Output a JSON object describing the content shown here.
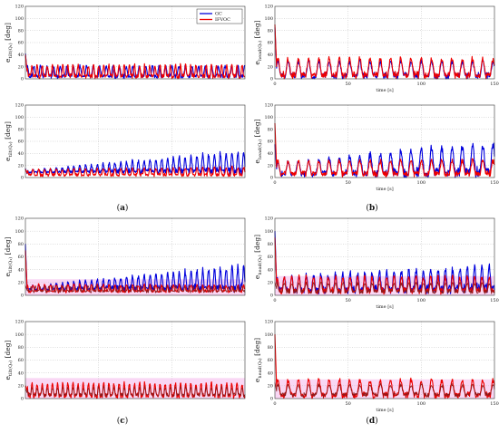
{
  "figure": {
    "colors": {
      "gc": "#0000dd",
      "ifvoc": "#ee0000",
      "band": "#f7c6ef",
      "dark": "#8b1a1a",
      "grid": "#bdbdbd"
    },
    "panel_captions": [
      {
        "open": "(",
        "letter": "a",
        "close": ")"
      },
      {
        "open": "(",
        "letter": "b",
        "close": ")"
      },
      {
        "open": "(",
        "letter": "c",
        "close": ")"
      },
      {
        "open": "(",
        "letter": "d",
        "close": ")"
      }
    ]
  },
  "chart_data": [
    {
      "type": "line",
      "panel": "a",
      "position": "top",
      "ylabel": {
        "main": "e",
        "sub": "tilt",
        "arg": "(Q₁)",
        "unit": "[deg]"
      },
      "xlabel": "",
      "xlim": [
        0,
        150
      ],
      "ylim": [
        0,
        120
      ],
      "xticks": [
        0,
        50,
        100,
        150
      ],
      "yticks": [
        0,
        20,
        40,
        60,
        80,
        100,
        120
      ],
      "legend": {
        "position": "top-right",
        "entries": [
          "GC",
          "IFVOC"
        ]
      },
      "series": [
        {
          "name": "GC",
          "color": "#0000dd",
          "start": 42,
          "low": 2,
          "high_start": 22,
          "high_end": 22,
          "period": 4.5,
          "seed": 1
        },
        {
          "name": "IFVOC",
          "color": "#ee0000",
          "start": 40,
          "low": 2,
          "high_start": 24,
          "high_end": 24,
          "period": 3.5,
          "seed": 2
        }
      ]
    },
    {
      "type": "line",
      "panel": "a",
      "position": "bottom",
      "ylabel": {
        "main": "e",
        "sub": "head",
        "arg": "(Q₁)",
        "unit": "[deg]"
      },
      "xlabel": "time [s]",
      "xlim": [
        0,
        150
      ],
      "ylim": [
        0,
        120
      ],
      "xticks": [
        0,
        50,
        100,
        150
      ],
      "yticks": [
        0,
        20,
        40,
        60,
        80,
        100,
        120
      ],
      "series": [
        {
          "name": "GC",
          "color": "#0000dd",
          "start": 85,
          "low": 2,
          "high_start": 30,
          "high_end": 30,
          "period": 7,
          "seed": 3
        },
        {
          "name": "IFVOC",
          "color": "#ee0000",
          "start": 90,
          "low": 2,
          "high_start": 35,
          "high_end": 35,
          "period": 7,
          "seed": 4
        }
      ]
    },
    {
      "type": "line",
      "panel": "b",
      "position": "top",
      "ylabel": {
        "main": "e",
        "sub": "tilt",
        "arg": "(Q₂)",
        "unit": "[deg]"
      },
      "xlabel": "",
      "xlim": [
        0,
        150
      ],
      "ylim": [
        0,
        120
      ],
      "xticks": [
        0,
        50,
        100,
        150
      ],
      "yticks": [
        0,
        20,
        40,
        60,
        80,
        100,
        120
      ],
      "series": [
        {
          "name": "GC",
          "color": "#0000dd",
          "start": 15,
          "low": 8,
          "high_start": 12,
          "high_end": 45,
          "period": 4,
          "seed": 5
        },
        {
          "name": "IFVOC",
          "color": "#ee0000",
          "start": 14,
          "low": 3,
          "high_start": 14,
          "high_end": 18,
          "period": 4,
          "seed": 6
        }
      ]
    },
    {
      "type": "line",
      "panel": "b",
      "position": "bottom",
      "ylabel": {
        "main": "e",
        "sub": "head",
        "arg": "(Q₂)",
        "unit": "[deg]"
      },
      "xlabel": "time [s]",
      "xlim": [
        0,
        150
      ],
      "ylim": [
        0,
        120
      ],
      "xticks": [
        0,
        50,
        100,
        150
      ],
      "yticks": [
        0,
        20,
        40,
        60,
        80,
        100,
        120
      ],
      "series": [
        {
          "name": "GC",
          "color": "#0000dd",
          "start": 55,
          "low": 3,
          "high_start": 25,
          "high_end": 60,
          "period": 7,
          "seed": 7
        },
        {
          "name": "IFVOC",
          "color": "#ee0000",
          "start": 90,
          "low": 3,
          "high_start": 28,
          "high_end": 30,
          "period": 7,
          "seed": 8
        }
      ]
    },
    {
      "type": "line",
      "panel": "c",
      "position": "top",
      "ylabel": {
        "main": "e",
        "sub": "tilt",
        "arg": "(Q₁)",
        "unit": "[deg]"
      },
      "xlabel": "",
      "xlim": [
        0,
        150
      ],
      "ylim": [
        0,
        120
      ],
      "xticks": [
        0,
        50,
        100,
        150
      ],
      "yticks": [
        0,
        20,
        40,
        60,
        80,
        100,
        120
      ],
      "band": [
        0,
        25
      ],
      "series": [
        {
          "name": "GC",
          "color": "#0000dd",
          "start": 80,
          "low": 8,
          "high_start": 15,
          "high_end": 48,
          "period": 4,
          "seed": 9
        },
        {
          "name": "IFVOC",
          "color": "#ee0000",
          "start": 70,
          "low": 5,
          "high_start": 18,
          "high_end": 16,
          "period": 4,
          "seed": 10
        },
        {
          "name": "",
          "color": "#8b1a1a",
          "start": 15,
          "low": 5,
          "high_start": 15,
          "high_end": 15,
          "period": 3,
          "seed": 11
        }
      ]
    },
    {
      "type": "line",
      "panel": "c",
      "position": "bottom",
      "ylabel": {
        "main": "e",
        "sub": "head",
        "arg": "(Q₁)",
        "unit": "[deg]"
      },
      "xlabel": "time [s]",
      "xlim": [
        0,
        150
      ],
      "ylim": [
        0,
        120
      ],
      "xticks": [
        0,
        50,
        100,
        150
      ],
      "yticks": [
        0,
        20,
        40,
        60,
        80,
        100,
        120
      ],
      "band": [
        0,
        30
      ],
      "series": [
        {
          "name": "GC",
          "color": "#0000dd",
          "start": 100,
          "low": 5,
          "high_start": 30,
          "high_end": 48,
          "period": 5,
          "seed": 12
        },
        {
          "name": "IFVOC",
          "color": "#ee0000",
          "start": 90,
          "low": 4,
          "high_start": 30,
          "high_end": 30,
          "period": 5,
          "seed": 13
        },
        {
          "name": "",
          "color": "#8b1a1a",
          "start": 20,
          "low": 4,
          "high_start": 20,
          "high_end": 20,
          "period": 5,
          "seed": 14
        }
      ]
    },
    {
      "type": "line",
      "panel": "d",
      "position": "top",
      "ylabel": {
        "main": "e",
        "sub": "tilt",
        "arg": "(Q₃)",
        "unit": "[deg]"
      },
      "xlabel": "",
      "xlim": [
        0,
        150
      ],
      "ylim": [
        0,
        120
      ],
      "xticks": [
        0,
        50,
        100,
        150
      ],
      "yticks": [
        0,
        20,
        40,
        60,
        80,
        100,
        120
      ],
      "band": [
        0,
        32
      ],
      "series": [
        {
          "name": "IFVOC",
          "color": "#ee0000",
          "start": 20,
          "low": 2,
          "high_start": 25,
          "high_end": 25,
          "period": 3.5,
          "seed": 15
        },
        {
          "name": "",
          "color": "#8b1a1a",
          "start": 15,
          "low": 4,
          "high_start": 18,
          "high_end": 18,
          "period": 3.5,
          "seed": 16
        }
      ]
    },
    {
      "type": "line",
      "panel": "d",
      "position": "bottom",
      "ylabel": {
        "main": "e",
        "sub": "head",
        "arg": "(Q₃)",
        "unit": "[deg]"
      },
      "xlabel": "time [s]",
      "xlim": [
        0,
        150
      ],
      "ylim": [
        0,
        120
      ],
      "xticks": [
        0,
        50,
        100,
        150
      ],
      "yticks": [
        0,
        20,
        40,
        60,
        80,
        100,
        120
      ],
      "band": [
        0,
        30
      ],
      "series": [
        {
          "name": "IFVOC",
          "color": "#ee0000",
          "start": 100,
          "low": 2,
          "high_start": 30,
          "high_end": 30,
          "period": 7,
          "seed": 17
        },
        {
          "name": "",
          "color": "#8b1a1a",
          "start": 25,
          "low": 4,
          "high_start": 22,
          "high_end": 22,
          "period": 7,
          "seed": 18
        }
      ]
    }
  ]
}
